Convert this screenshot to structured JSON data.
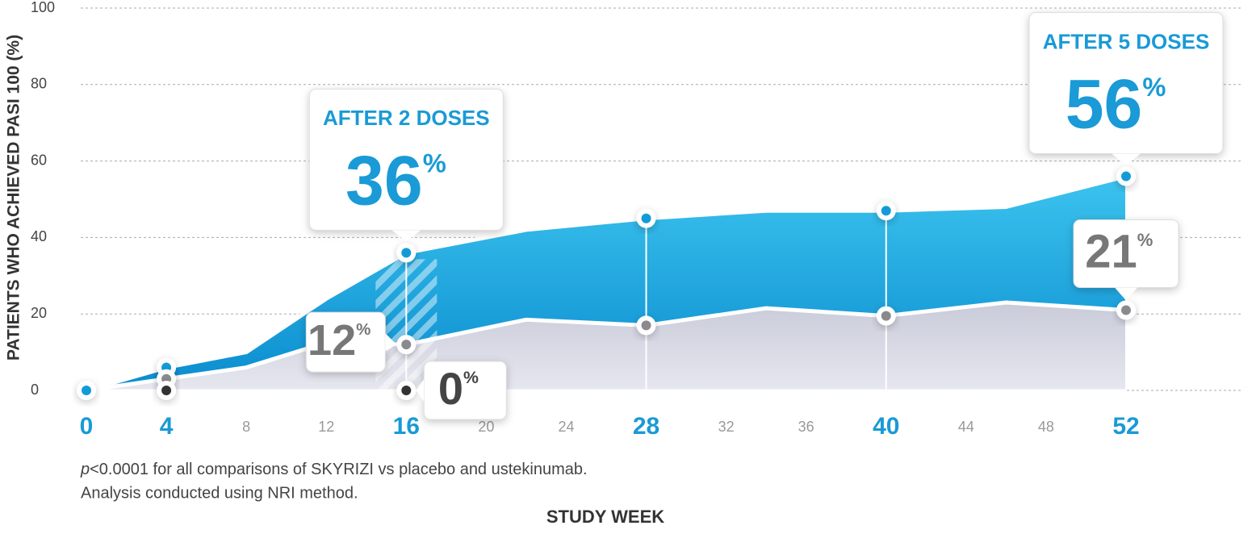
{
  "chart_data": {
    "type": "area",
    "y_axis_label": "PATIENTS WHO ACHIEVED PASI 100 (%)",
    "x_axis_label": "STUDY WEEK",
    "notes": [
      {
        "italic": "p",
        "text": "<0.0001 for all comparisons of SKYRIZI vs placebo and ustekinumab."
      },
      {
        "text": "Analysis conducted using NRI method."
      }
    ],
    "xlim": [
      0,
      52
    ],
    "xticks": [
      0,
      4,
      8,
      12,
      16,
      20,
      24,
      28,
      32,
      36,
      40,
      44,
      48,
      52
    ],
    "emphasized_xticks": [
      0,
      4,
      16,
      28,
      40,
      52
    ],
    "ylim": [
      0,
      100
    ],
    "yticks": [
      0,
      20,
      40,
      60,
      80,
      100
    ],
    "grid": true,
    "label_suffix": "%",
    "series": [
      {
        "color": "#139bd8",
        "area": true,
        "x": [
          0,
          4,
          8,
          12,
          16,
          22,
          28,
          34,
          40,
          46,
          52
        ],
        "values": [
          0,
          6,
          10,
          24,
          36,
          42,
          45,
          47,
          47,
          48,
          56
        ],
        "value_labels": [
          null,
          null,
          null,
          null,
          "36",
          null,
          null,
          null,
          null,
          null,
          "56"
        ],
        "callout_titles": [
          null,
          null,
          null,
          null,
          "AFTER 2 DOSES",
          null,
          null,
          null,
          null,
          null,
          "AFTER 5 DOSES"
        ],
        "marker_x": [
          0,
          4,
          16,
          28,
          40,
          52
        ]
      },
      {
        "color": "#d7d8e4",
        "marker_color": "#8a8a8e",
        "area": true,
        "x": [
          0,
          4,
          8,
          12,
          16,
          22,
          28,
          34,
          40,
          46,
          52
        ],
        "values": [
          0,
          3,
          6,
          12.5,
          12,
          18.5,
          17,
          21.5,
          19.5,
          23,
          21
        ],
        "value_labels": [
          null,
          null,
          null,
          null,
          "12",
          null,
          null,
          null,
          null,
          null,
          "21"
        ],
        "marker_x": [
          4,
          16,
          28,
          40,
          52
        ]
      },
      {
        "color": "#333333",
        "area": false,
        "x": [
          4,
          16
        ],
        "values": [
          0,
          0
        ],
        "value_labels": [
          null,
          "0"
        ],
        "marker_x": [
          4,
          16
        ]
      }
    ]
  }
}
